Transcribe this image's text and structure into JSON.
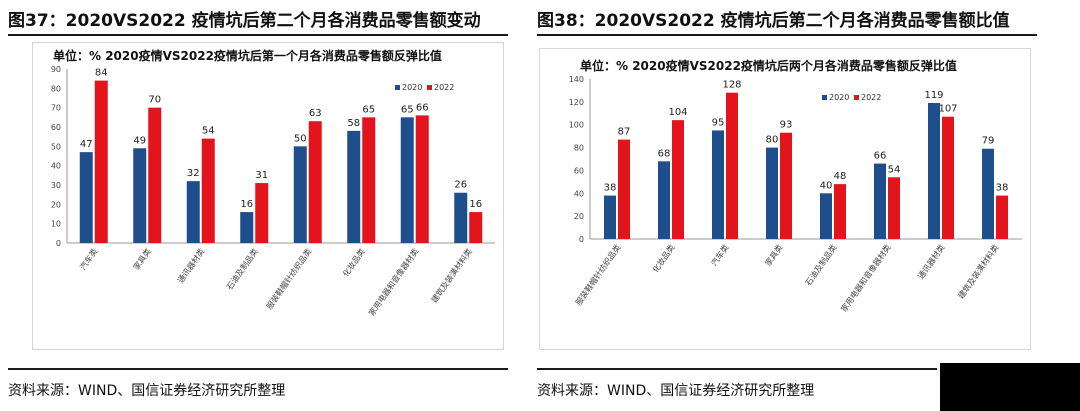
{
  "left": {
    "figure_title": "图37：2020VS2022 疫情坑后第二个月各消费品零售额变动",
    "source": "资料来源：WIND、国信证券经济研究所整理"
  },
  "right": {
    "figure_title": "图38：2020VS2022 疫情坑后第二个月各消费品零售额比值",
    "source": "资料来源：WIND、国信证券经济研究所整理"
  },
  "colors": {
    "2020": "#1f4e8c",
    "2022": "#e3141b",
    "axis": "#999999",
    "text": "#222222"
  },
  "chart_data": [
    {
      "type": "bar",
      "title": "单位：% 2020疫情VS2022疫情坑后第一个月各消费品零售额反弹比值",
      "categories": [
        "汽车类",
        "家具类",
        "通讯器材类",
        "石油及制品类",
        "服装鞋帽针纺织品类",
        "化妆品类",
        "家用电器和音像器材类",
        "建筑及装潢材料类"
      ],
      "series": [
        {
          "name": "2020",
          "values": [
            47,
            49,
            32,
            16,
            50,
            58,
            65,
            26
          ]
        },
        {
          "name": "2022",
          "values": [
            84,
            70,
            54,
            31,
            63,
            65,
            66,
            16
          ]
        }
      ],
      "ylim": [
        0,
        90
      ],
      "yticks": [
        0,
        10,
        20,
        30,
        40,
        50,
        60,
        70,
        80,
        90
      ],
      "legend": "top-right"
    },
    {
      "type": "bar",
      "title": "单位：% 2020疫情VS2022疫情坑后两个月各消费品零售额反弹比值",
      "categories": [
        "服装鞋帽针纺织品类",
        "化妆品类",
        "汽车类",
        "家具类",
        "石油及制品类",
        "家用电器和音像器材类",
        "通讯器材类",
        "建筑及装潢材料类"
      ],
      "series": [
        {
          "name": "2020",
          "values": [
            38,
            68,
            95,
            80,
            40,
            66,
            119,
            79
          ]
        },
        {
          "name": "2022",
          "values": [
            87,
            104,
            128,
            93,
            48,
            54,
            107,
            38
          ]
        }
      ],
      "ylim": [
        0,
        140
      ],
      "yticks": [
        0,
        20,
        40,
        60,
        80,
        100,
        120,
        140
      ],
      "legend": "top-right"
    }
  ]
}
